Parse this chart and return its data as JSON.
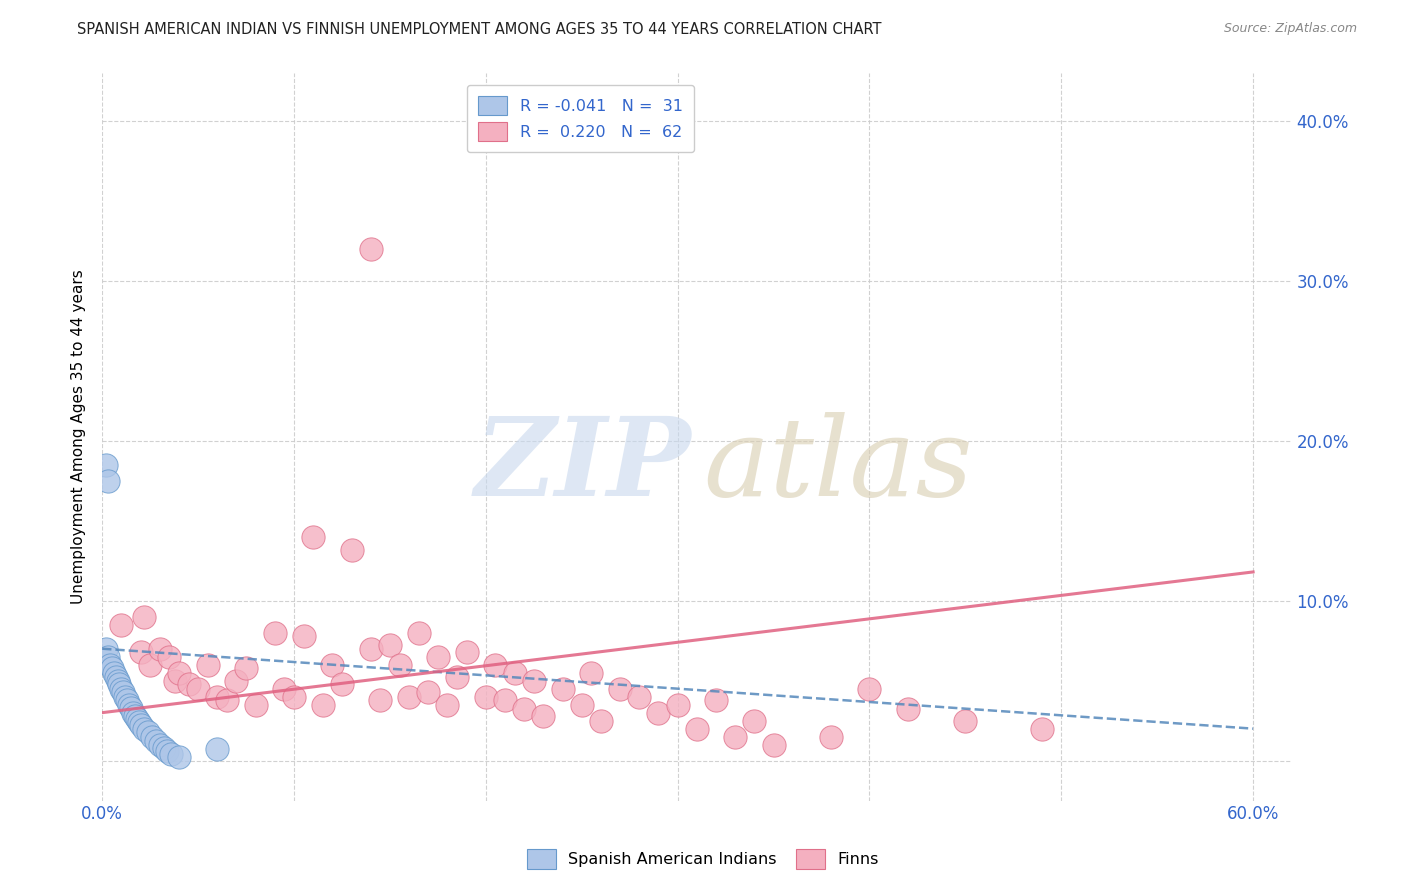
{
  "title": "SPANISH AMERICAN INDIAN VS FINNISH UNEMPLOYMENT AMONG AGES 35 TO 44 YEARS CORRELATION CHART",
  "source": "Source: ZipAtlas.com",
  "ylabel": "Unemployment Among Ages 35 to 44 years",
  "xlim": [
    0.0,
    0.62
  ],
  "ylim": [
    -0.025,
    0.43
  ],
  "blue_color": "#aec6e8",
  "blue_edge_color": "#6699cc",
  "pink_color": "#f4b0c0",
  "pink_edge_color": "#e0708a",
  "blue_line_color": "#5588bb",
  "pink_line_color": "#e06080",
  "blue_line_start_y": 0.07,
  "blue_line_end_y": 0.02,
  "pink_line_start_y": 0.03,
  "pink_line_end_y": 0.118,
  "blue_dots_x": [
    0.002,
    0.003,
    0.004,
    0.005,
    0.006,
    0.007,
    0.008,
    0.009,
    0.01,
    0.011,
    0.012,
    0.013,
    0.014,
    0.015,
    0.016,
    0.017,
    0.018,
    0.019,
    0.02,
    0.022,
    0.024,
    0.026,
    0.028,
    0.03,
    0.032,
    0.034,
    0.036,
    0.04,
    0.002,
    0.003,
    0.06
  ],
  "blue_dots_y": [
    0.07,
    0.065,
    0.06,
    0.058,
    0.055,
    0.052,
    0.05,
    0.048,
    0.045,
    0.043,
    0.04,
    0.038,
    0.035,
    0.033,
    0.03,
    0.028,
    0.026,
    0.024,
    0.022,
    0.02,
    0.018,
    0.015,
    0.012,
    0.01,
    0.008,
    0.006,
    0.004,
    0.002,
    0.185,
    0.175,
    0.007
  ],
  "pink_dots_x": [
    0.01,
    0.02,
    0.022,
    0.025,
    0.03,
    0.035,
    0.038,
    0.04,
    0.045,
    0.05,
    0.055,
    0.06,
    0.065,
    0.07,
    0.075,
    0.08,
    0.09,
    0.095,
    0.1,
    0.105,
    0.11,
    0.115,
    0.12,
    0.125,
    0.13,
    0.14,
    0.145,
    0.15,
    0.155,
    0.16,
    0.165,
    0.17,
    0.175,
    0.18,
    0.185,
    0.19,
    0.2,
    0.205,
    0.21,
    0.215,
    0.22,
    0.225,
    0.23,
    0.24,
    0.25,
    0.255,
    0.26,
    0.27,
    0.28,
    0.29,
    0.3,
    0.31,
    0.32,
    0.33,
    0.34,
    0.35,
    0.38,
    0.4,
    0.42,
    0.45,
    0.49,
    0.14
  ],
  "pink_dots_y": [
    0.085,
    0.068,
    0.09,
    0.06,
    0.07,
    0.065,
    0.05,
    0.055,
    0.048,
    0.045,
    0.06,
    0.04,
    0.038,
    0.05,
    0.058,
    0.035,
    0.08,
    0.045,
    0.04,
    0.078,
    0.14,
    0.035,
    0.06,
    0.048,
    0.132,
    0.07,
    0.038,
    0.072,
    0.06,
    0.04,
    0.08,
    0.043,
    0.065,
    0.035,
    0.052,
    0.068,
    0.04,
    0.06,
    0.038,
    0.055,
    0.032,
    0.05,
    0.028,
    0.045,
    0.035,
    0.055,
    0.025,
    0.045,
    0.04,
    0.03,
    0.035,
    0.02,
    0.038,
    0.015,
    0.025,
    0.01,
    0.015,
    0.045,
    0.032,
    0.025,
    0.02,
    0.32
  ]
}
